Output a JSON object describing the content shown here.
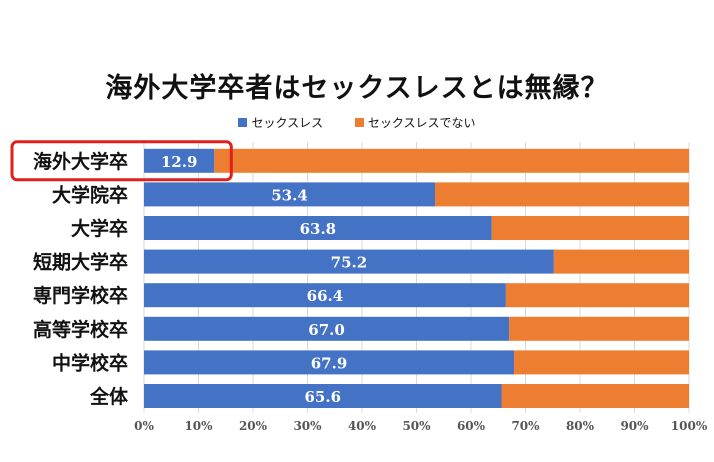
{
  "chart_data": {
    "type": "bar",
    "orientation": "horizontal",
    "stacked": "percent",
    "title": "海外大学卒者はセックスレスとは無縁？",
    "categories": [
      "海外大学卒",
      "大学院卒",
      "大学卒",
      "短期大学卒",
      "専門学校卒",
      "高等学校卒",
      "中学校卒",
      "全体"
    ],
    "series": [
      {
        "name": "セックスレス",
        "color": "#4472C4",
        "values": [
          12.9,
          53.4,
          63.8,
          75.2,
          66.4,
          67.0,
          67.9,
          65.6
        ]
      },
      {
        "name": "セックスレスでない",
        "color": "#ED7D31",
        "values": [
          87.1,
          46.6,
          36.2,
          24.8,
          33.6,
          33.0,
          32.1,
          34.4
        ]
      }
    ],
    "data_labels": [
      "12.9",
      "53.4",
      "63.8",
      "75.2",
      "66.4",
      "67.0",
      "67.9",
      "65.6"
    ],
    "xticks": [
      "0%",
      "10%",
      "20%",
      "30%",
      "40%",
      "50%",
      "60%",
      "70%",
      "80%",
      "90%",
      "100%"
    ],
    "xlim": [
      0,
      100
    ],
    "grid": true,
    "legend_position": "top",
    "highlight": {
      "category": "海外大学卒",
      "color": "#E0201B"
    }
  }
}
